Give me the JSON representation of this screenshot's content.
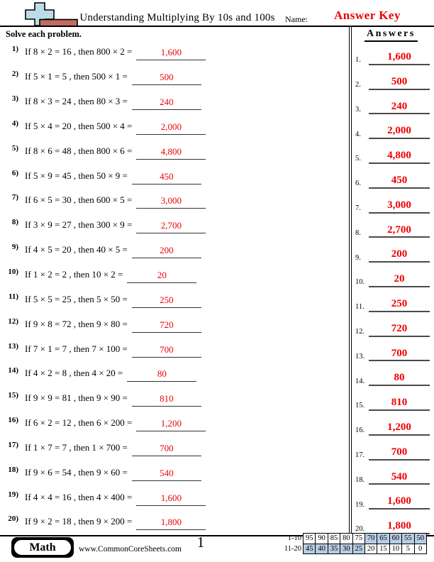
{
  "header": {
    "title": "Understanding Multiplying By 10s and 100s",
    "name_label": "Name:",
    "answer_key_label": "Answer Key",
    "instructions": "Solve each problem.",
    "answers_column_title": "Answers"
  },
  "icon": {
    "name": "plus-and-block-logo"
  },
  "problems": [
    {
      "label": "1)",
      "text": "If 8 × 2 = 16 , then 800 × 2 =",
      "answer": "1,600"
    },
    {
      "label": "2)",
      "text": "If 5 × 1 = 5 , then 500 × 1 =",
      "answer": "500"
    },
    {
      "label": "3)",
      "text": "If 8 × 3 = 24 , then 80 × 3 =",
      "answer": "240"
    },
    {
      "label": "4)",
      "text": "If 5 × 4 = 20 , then 500 × 4 =",
      "answer": "2,000"
    },
    {
      "label": "5)",
      "text": "If 8 × 6 = 48 , then 800 × 6 =",
      "answer": "4,800"
    },
    {
      "label": "6)",
      "text": "If 5 × 9 = 45 , then 50 × 9 =",
      "answer": "450"
    },
    {
      "label": "7)",
      "text": "If 6 × 5 = 30 , then 600 × 5 =",
      "answer": "3,000"
    },
    {
      "label": "8)",
      "text": "If 3 × 9 = 27 , then 300 × 9 =",
      "answer": "2,700"
    },
    {
      "label": "9)",
      "text": "If 4 × 5 = 20 , then 40 × 5 =",
      "answer": "200"
    },
    {
      "label": "10)",
      "text": "If 1 × 2 = 2 , then 10 × 2 =",
      "answer": "20"
    },
    {
      "label": "11)",
      "text": "If 5 × 5 = 25 , then 5 × 50 =",
      "answer": "250"
    },
    {
      "label": "12)",
      "text": "If 9 × 8 = 72 , then 9 × 80 =",
      "answer": "720"
    },
    {
      "label": "13)",
      "text": "If 7 × 1 = 7 , then 7 × 100 =",
      "answer": "700"
    },
    {
      "label": "14)",
      "text": "If 4 × 2 = 8 , then 4 × 20 =",
      "answer": "80"
    },
    {
      "label": "15)",
      "text": "If 9 × 9 = 81 , then 9 × 90 =",
      "answer": "810"
    },
    {
      "label": "16)",
      "text": "If 6 × 2 = 12 , then 6 × 200 =",
      "answer": "1,200"
    },
    {
      "label": "17)",
      "text": "If 1 × 7 = 7 , then 1 × 700 =",
      "answer": "700"
    },
    {
      "label": "18)",
      "text": "If 9 × 6 = 54 , then 9 × 60 =",
      "answer": "540"
    },
    {
      "label": "19)",
      "text": "If 4 × 4 = 16 , then 4 × 400 =",
      "answer": "1,600"
    },
    {
      "label": "20)",
      "text": "If 9 × 2 = 18 , then 9 × 200 =",
      "answer": "1,800"
    }
  ],
  "answers_column": [
    {
      "label": "1.",
      "value": "1,600"
    },
    {
      "label": "2.",
      "value": "500"
    },
    {
      "label": "3.",
      "value": "240"
    },
    {
      "label": "4.",
      "value": "2,000"
    },
    {
      "label": "5.",
      "value": "4,800"
    },
    {
      "label": "6.",
      "value": "450"
    },
    {
      "label": "7.",
      "value": "3,000"
    },
    {
      "label": "8.",
      "value": "2,700"
    },
    {
      "label": "9.",
      "value": "200"
    },
    {
      "label": "10.",
      "value": "20"
    },
    {
      "label": "11.",
      "value": "250"
    },
    {
      "label": "12.",
      "value": "720"
    },
    {
      "label": "13.",
      "value": "700"
    },
    {
      "label": "14.",
      "value": "80"
    },
    {
      "label": "15.",
      "value": "810"
    },
    {
      "label": "16.",
      "value": "1,200"
    },
    {
      "label": "17.",
      "value": "700"
    },
    {
      "label": "18.",
      "value": "540"
    },
    {
      "label": "19.",
      "value": "1,600"
    },
    {
      "label": "20.",
      "value": "1,800"
    }
  ],
  "footer": {
    "subject_badge": "Math",
    "website": "www.CommonCoreSheets.com",
    "page_number": "1",
    "score_table": {
      "rows": [
        {
          "label": "1-10",
          "cells": [
            {
              "v": "95",
              "shaded": false
            },
            {
              "v": "90",
              "shaded": false
            },
            {
              "v": "85",
              "shaded": false
            },
            {
              "v": "80",
              "shaded": false
            },
            {
              "v": "75",
              "shaded": false
            },
            {
              "v": "70",
              "shaded": true
            },
            {
              "v": "65",
              "shaded": true
            },
            {
              "v": "60",
              "shaded": true
            },
            {
              "v": "55",
              "shaded": true
            },
            {
              "v": "50",
              "shaded": true
            }
          ]
        },
        {
          "label": "11-20",
          "cells": [
            {
              "v": "45",
              "shaded": true
            },
            {
              "v": "40",
              "shaded": true
            },
            {
              "v": "35",
              "shaded": true
            },
            {
              "v": "30",
              "shaded": true
            },
            {
              "v": "25",
              "shaded": true
            },
            {
              "v": "20",
              "shaded": false
            },
            {
              "v": "15",
              "shaded": false
            },
            {
              "v": "10",
              "shaded": false
            },
            {
              "v": "5",
              "shaded": false
            },
            {
              "v": "0",
              "shaded": false
            }
          ]
        }
      ]
    }
  },
  "colors": {
    "answer_red": "#ee0000",
    "score_cell_blue": "#b8cce4",
    "icon_blue": "#bcdde8",
    "icon_brick": "#bf6b62"
  }
}
